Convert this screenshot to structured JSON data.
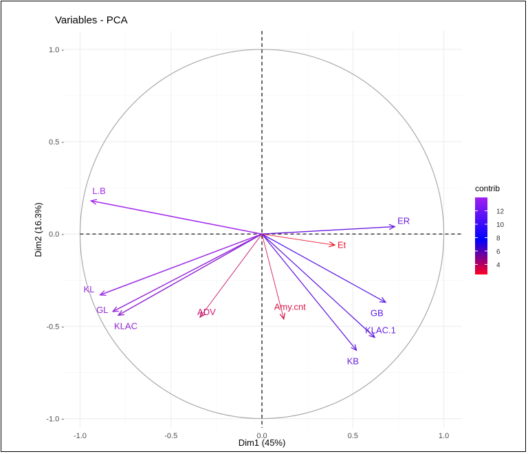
{
  "chart_data": {
    "type": "scatter",
    "title": "Variables - PCA",
    "xlabel": "Dim1 (45%)",
    "ylabel": "Dim2 (16.3%)",
    "xlim": [
      -1.1,
      1.1
    ],
    "ylim": [
      -1.05,
      1.1
    ],
    "xticks": [
      -1.0,
      -0.5,
      0.0,
      0.5,
      1.0
    ],
    "xtick_labels": [
      "-1.0",
      "-0.5",
      "0.0",
      "0.5",
      "1.0"
    ],
    "yticks": [
      -1.0,
      -0.5,
      0.0,
      0.5,
      1.0
    ],
    "ytick_labels": [
      "-1.0 -",
      "-0.5 -",
      "0.0 -",
      "0.5 -",
      "1.0 -"
    ],
    "grid": true,
    "unit_circle": true,
    "variables": [
      {
        "name": "L.B",
        "x": -0.94,
        "y": 0.18,
        "contrib": 13.5,
        "color": "#a329ee"
      },
      {
        "name": "ER",
        "x": 0.73,
        "y": 0.04,
        "contrib": 10.8,
        "color": "#6a1bdf"
      },
      {
        "name": "Et",
        "x": 0.4,
        "y": -0.06,
        "contrib": 3.0,
        "color": "#e8162c"
      },
      {
        "name": "KL",
        "x": -0.89,
        "y": -0.33,
        "contrib": 13.0,
        "color": "#9c2be3"
      },
      {
        "name": "GL",
        "x": -0.82,
        "y": -0.42,
        "contrib": 12.8,
        "color": "#952cd9"
      },
      {
        "name": "KLAC",
        "x": -0.79,
        "y": -0.44,
        "contrib": 12.2,
        "color": "#8e26d2"
      },
      {
        "name": "ADV",
        "x": -0.34,
        "y": -0.45,
        "contrib": 5.0,
        "color": "#c81a72"
      },
      {
        "name": "Amy.cnt",
        "x": 0.12,
        "y": -0.46,
        "contrib": 4.0,
        "color": "#d8194a"
      },
      {
        "name": "GB",
        "x": 0.68,
        "y": -0.37,
        "contrib": 9.5,
        "color": "#5a1be6"
      },
      {
        "name": "KLAC.1",
        "x": 0.62,
        "y": -0.56,
        "contrib": 10.2,
        "color": "#6620e0"
      },
      {
        "name": "KB",
        "x": 0.52,
        "y": -0.63,
        "contrib": 10.0,
        "color": "#6b22dc"
      }
    ],
    "legend": {
      "title": "contrib",
      "position": "right",
      "ticks": [
        4,
        6,
        8,
        10,
        12
      ],
      "tick_labels": [
        "4",
        "6",
        "8",
        "10",
        "12"
      ],
      "range": [
        2.5,
        14
      ],
      "gradient": [
        "#ff0022",
        "#0000ff",
        "#a020f0"
      ]
    }
  }
}
